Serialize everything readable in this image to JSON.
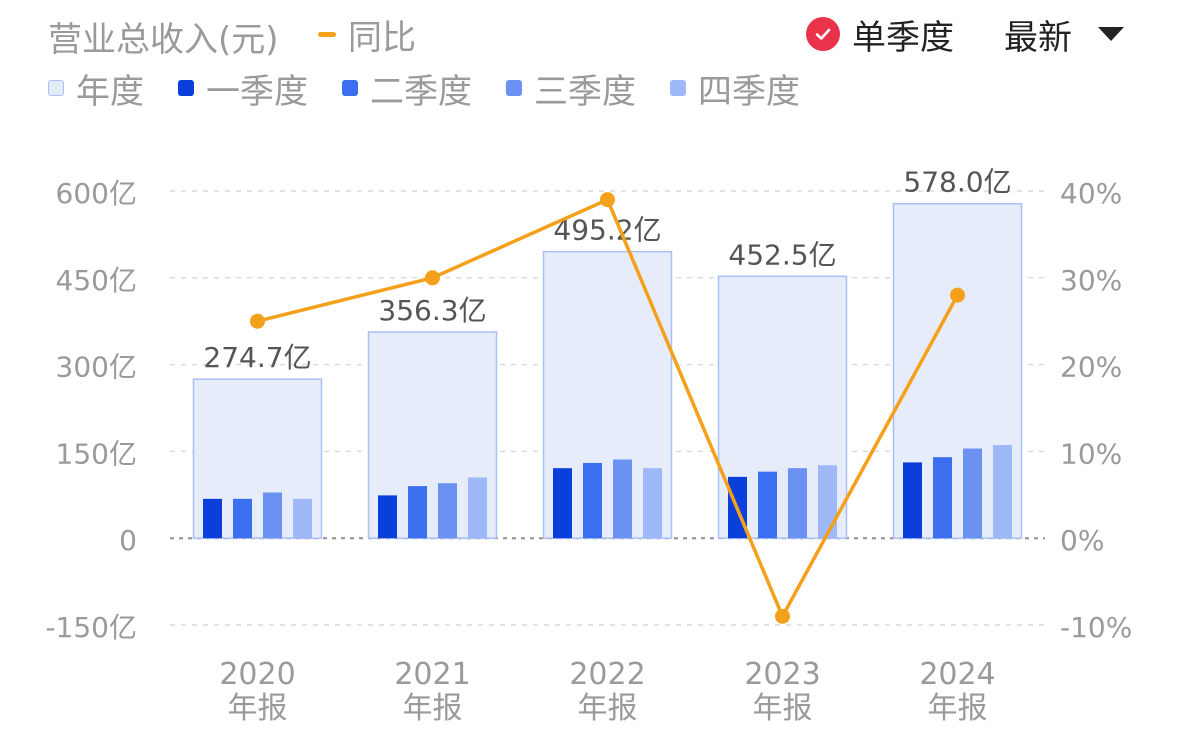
{
  "header": {
    "title": "营业总收入(元)",
    "yoy_label": "同比",
    "toggle_label": "单季度",
    "dropdown_label": "最新"
  },
  "legend": [
    {
      "label": "年度",
      "color": "#e7ecfb"
    },
    {
      "label": "一季度",
      "color": "#0b3fdc"
    },
    {
      "label": "二季度",
      "color": "#3b6ff0"
    },
    {
      "label": "三季度",
      "color": "#6b92f3"
    },
    {
      "label": "四季度",
      "color": "#9fb8f7"
    }
  ],
  "colors": {
    "annual_fill": "#e7ecfb",
    "annual_border": "#a9bff5",
    "yoy_line": "#f5a01a",
    "axis_text": "#9a9a9a",
    "label_text": "#555555"
  },
  "chart_data": {
    "type": "bar",
    "categories": [
      "2020年报",
      "2021年报",
      "2022年报",
      "2023年报",
      "2024年报"
    ],
    "category_years": [
      "2020",
      "2021",
      "2022",
      "2023",
      "2024"
    ],
    "category_suffix": "年报",
    "annual": {
      "name": "年度",
      "values": [
        274.7,
        356.3,
        495.2,
        452.5,
        578.0
      ],
      "labels": [
        "274.7亿",
        "356.3亿",
        "495.2亿",
        "452.5亿",
        "578.0亿"
      ]
    },
    "series": [
      {
        "name": "一季度",
        "values": [
          68,
          74,
          121,
          106,
          131
        ]
      },
      {
        "name": "二季度",
        "values": [
          68,
          90,
          130,
          115,
          140
        ]
      },
      {
        "name": "三季度",
        "values": [
          79,
          95,
          136,
          121,
          155
        ]
      },
      {
        "name": "四季度",
        "values": [
          68,
          105,
          121,
          126,
          161
        ]
      }
    ],
    "yoy": {
      "name": "同比",
      "values": [
        25,
        30,
        39,
        -9,
        28
      ]
    },
    "left_axis": {
      "ylim": [
        -150,
        600
      ],
      "ticks": [
        -150,
        0,
        150,
        300,
        450,
        600
      ],
      "tick_labels": [
        "-150亿",
        "0",
        "150亿",
        "300亿",
        "450亿",
        "600亿"
      ]
    },
    "right_axis": {
      "ylim": [
        -10,
        40
      ],
      "ticks": [
        -10,
        0,
        10,
        20,
        30,
        40
      ],
      "tick_labels": [
        "-10%",
        "0%",
        "10%",
        "20%",
        "30%",
        "40%"
      ]
    },
    "grid": true
  }
}
